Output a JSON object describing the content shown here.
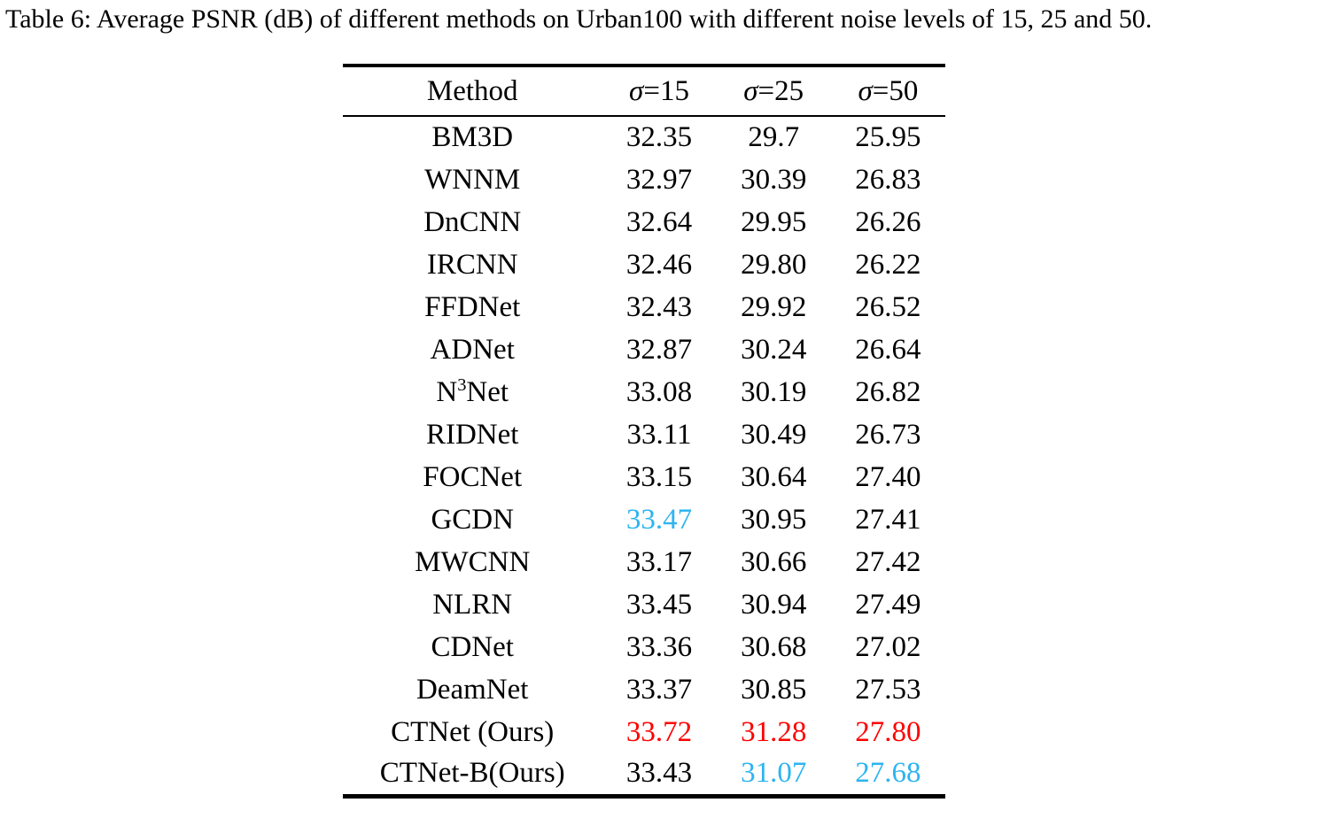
{
  "caption": "Table 6: Average PSNR (dB) of different methods on Urban100 with different noise levels of 15, 25 and 50.",
  "colors": {
    "best": "#fe0000",
    "second_best": "#2db4f0",
    "text": "#000000"
  },
  "chart_data": {
    "type": "table",
    "title": "Average PSNR (dB) of different methods on Urban100 with different noise levels of 15, 25 and 50",
    "columns": [
      "Method",
      "σ=15",
      "σ=25",
      "σ=50"
    ],
    "rows": [
      [
        "BM3D",
        32.35,
        29.7,
        25.95
      ],
      [
        "WNNM",
        32.97,
        30.39,
        26.83
      ],
      [
        "DnCNN",
        32.64,
        29.95,
        26.26
      ],
      [
        "IRCNN",
        32.46,
        29.8,
        26.22
      ],
      [
        "FFDNet",
        32.43,
        29.92,
        26.52
      ],
      [
        "ADNet",
        32.87,
        30.24,
        26.64
      ],
      [
        "N3Net",
        33.08,
        30.19,
        26.82
      ],
      [
        "RIDNet",
        33.11,
        30.49,
        26.73
      ],
      [
        "FOCNet",
        33.15,
        30.64,
        27.4
      ],
      [
        "GCDN",
        33.47,
        30.95,
        27.41
      ],
      [
        "MWCNN",
        33.17,
        30.66,
        27.42
      ],
      [
        "NLRN",
        33.45,
        30.94,
        27.49
      ],
      [
        "CDNet",
        33.36,
        30.68,
        27.02
      ],
      [
        "DeamNet",
        33.37,
        30.85,
        27.53
      ],
      [
        "CTNet (Ours)",
        33.72,
        31.28,
        27.8
      ],
      [
        "CTNet-B(Ours)",
        33.43,
        31.07,
        27.68
      ]
    ]
  },
  "table": {
    "header": {
      "method_label": "Method",
      "noise_columns": [
        {
          "symbol": "σ",
          "rest": "=15"
        },
        {
          "symbol": "σ",
          "rest": "=25"
        },
        {
          "symbol": "σ",
          "rest": "=50"
        }
      ]
    },
    "rows": [
      {
        "method": "BM3D",
        "values": [
          {
            "text": "32.35"
          },
          {
            "text": "29.7"
          },
          {
            "text": "25.95"
          }
        ]
      },
      {
        "method": "WNNM",
        "values": [
          {
            "text": "32.97"
          },
          {
            "text": "30.39"
          },
          {
            "text": "26.83"
          }
        ]
      },
      {
        "method": "DnCNN",
        "values": [
          {
            "text": "32.64"
          },
          {
            "text": "29.95"
          },
          {
            "text": "26.26"
          }
        ]
      },
      {
        "method": "IRCNN",
        "values": [
          {
            "text": "32.46"
          },
          {
            "text": "29.80"
          },
          {
            "text": "26.22"
          }
        ]
      },
      {
        "method": "FFDNet",
        "values": [
          {
            "text": "32.43"
          },
          {
            "text": "29.92"
          },
          {
            "text": "26.52"
          }
        ]
      },
      {
        "method": "ADNet",
        "values": [
          {
            "text": "32.87"
          },
          {
            "text": "30.24"
          },
          {
            "text": "26.64"
          }
        ]
      },
      {
        "method": "N^3^Net",
        "values": [
          {
            "text": "33.08"
          },
          {
            "text": "30.19"
          },
          {
            "text": "26.82"
          }
        ]
      },
      {
        "method": "RIDNet",
        "values": [
          {
            "text": "33.11"
          },
          {
            "text": "30.49"
          },
          {
            "text": "26.73"
          }
        ]
      },
      {
        "method": "FOCNet",
        "values": [
          {
            "text": "33.15"
          },
          {
            "text": "30.64"
          },
          {
            "text": "27.40"
          }
        ]
      },
      {
        "method": "GCDN",
        "values": [
          {
            "text": "33.47",
            "highlight": "second_best"
          },
          {
            "text": "30.95"
          },
          {
            "text": "27.41"
          }
        ]
      },
      {
        "method": "MWCNN",
        "values": [
          {
            "text": "33.17"
          },
          {
            "text": "30.66"
          },
          {
            "text": "27.42"
          }
        ]
      },
      {
        "method": "NLRN",
        "values": [
          {
            "text": "33.45"
          },
          {
            "text": "30.94"
          },
          {
            "text": "27.49"
          }
        ]
      },
      {
        "method": "CDNet",
        "values": [
          {
            "text": "33.36"
          },
          {
            "text": "30.68"
          },
          {
            "text": "27.02"
          }
        ]
      },
      {
        "method": "DeamNet",
        "values": [
          {
            "text": "33.37"
          },
          {
            "text": "30.85"
          },
          {
            "text": "27.53"
          }
        ]
      },
      {
        "method": "CTNet (Ours)",
        "values": [
          {
            "text": "33.72",
            "highlight": "best"
          },
          {
            "text": "31.28",
            "highlight": "best"
          },
          {
            "text": "27.80",
            "highlight": "best"
          }
        ]
      },
      {
        "method": "CTNet-B(Ours)",
        "values": [
          {
            "text": "33.43"
          },
          {
            "text": "31.07",
            "highlight": "second_best"
          },
          {
            "text": "27.68",
            "highlight": "second_best"
          }
        ]
      }
    ]
  }
}
